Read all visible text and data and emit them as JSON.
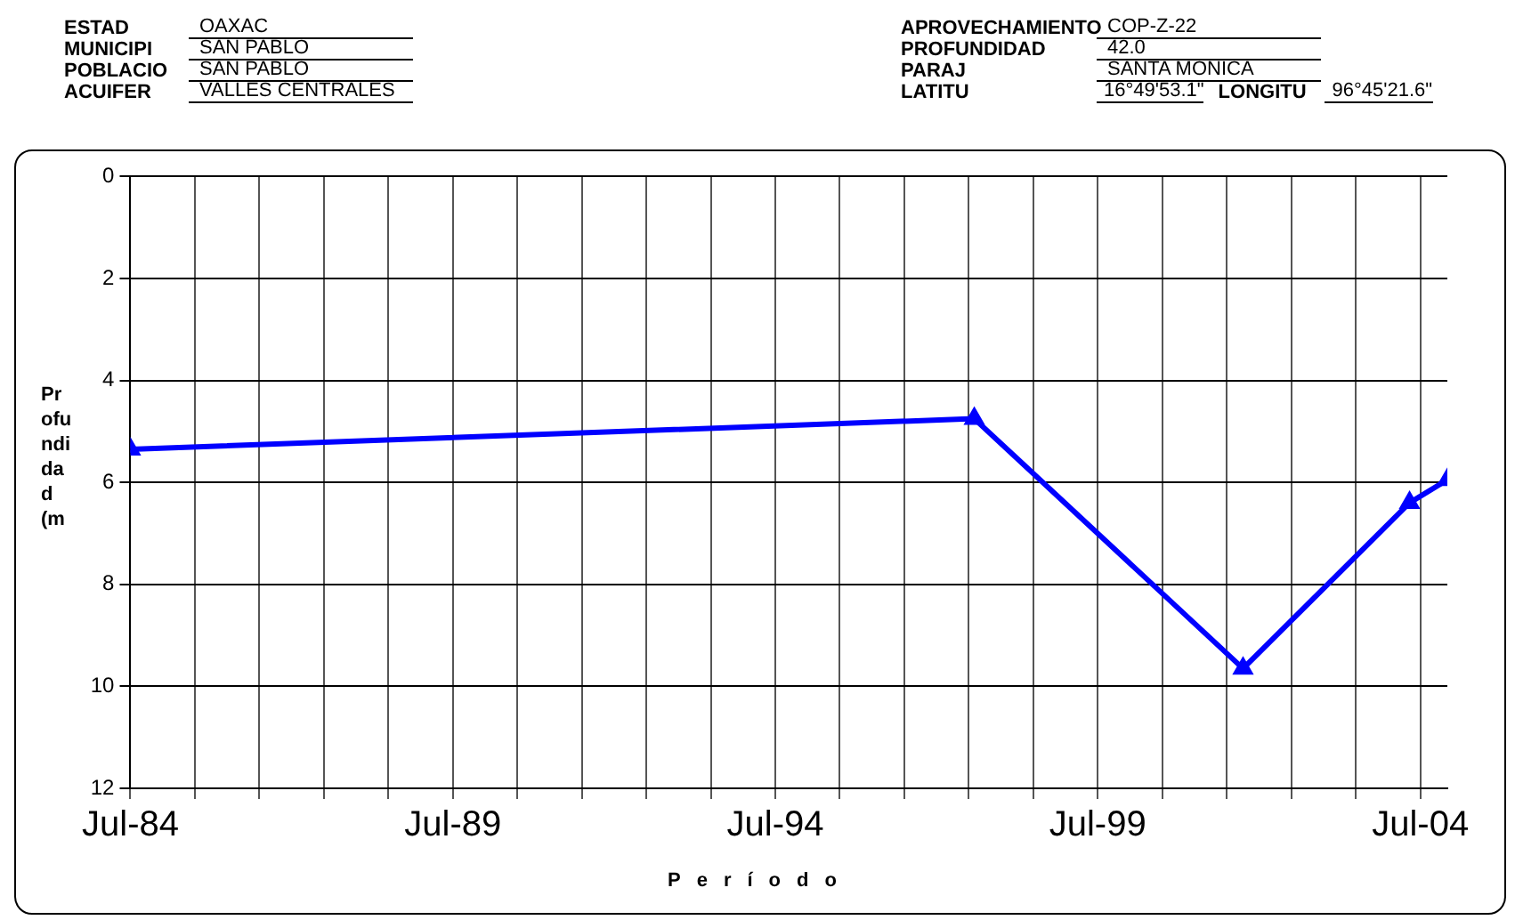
{
  "chart_data": {
    "type": "line",
    "ylabel": "Profundidad (m",
    "xlabel": "Período",
    "annotations": [
      "ESTAD",
      "OAXAC",
      "MUNICIPI",
      "SAN PABLO",
      "POBLACIO",
      "SAN PABLO",
      "ACUIFER",
      "VALLES CENTRALES",
      "APROVECHAMIENTO",
      "COP-Z-22",
      "PROFUNDIDAD",
      "42.0",
      "PARAJ",
      "SANTA MONICA",
      "LATITU",
      "16°49'53.1\"",
      "LONGITU",
      "96°45'21.6\""
    ],
    "series": [
      {
        "color": "#0000ff",
        "x": [
          "1984-07",
          "1997-08",
          "2001-10",
          "2004-05",
          "2004-12"
        ],
        "values": [
          5.35,
          4.75,
          9.65,
          6.4,
          5.95
        ]
      }
    ],
    "xlim": [
      "1984-07",
      "2004-12"
    ],
    "xticks": [
      {
        "value": "1984-07",
        "label": "Jul-84"
      },
      {
        "value": "1985-07",
        "label": null
      },
      {
        "value": "1986-07",
        "label": null
      },
      {
        "value": "1987-07",
        "label": null
      },
      {
        "value": "1988-07",
        "label": null
      },
      {
        "value": "1989-07",
        "label": "Jul-89"
      },
      {
        "value": "1990-07",
        "label": null
      },
      {
        "value": "1991-07",
        "label": null
      },
      {
        "value": "1992-07",
        "label": null
      },
      {
        "value": "1993-07",
        "label": null
      },
      {
        "value": "1994-07",
        "label": "Jul-94"
      },
      {
        "value": "1995-07",
        "label": null
      },
      {
        "value": "1996-07",
        "label": null
      },
      {
        "value": "1997-07",
        "label": null
      },
      {
        "value": "1998-07",
        "label": null
      },
      {
        "value": "1999-07",
        "label": "Jul-99"
      },
      {
        "value": "2000-07",
        "label": null
      },
      {
        "value": "2001-07",
        "label": null
      },
      {
        "value": "2002-07",
        "label": null
      },
      {
        "value": "2003-07",
        "label": null
      },
      {
        "value": "2004-07",
        "label": "Jul-04"
      }
    ],
    "ylim": [
      12,
      0
    ],
    "yticks": [
      0,
      2,
      4,
      6,
      8,
      10,
      12
    ],
    "grid": true,
    "legend": false,
    "marker": "triangle",
    "line_style": "solid"
  }
}
